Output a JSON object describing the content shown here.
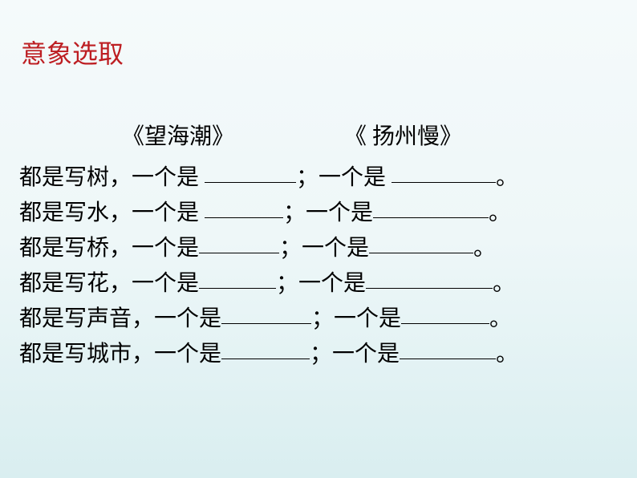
{
  "title": "意象选取",
  "title_color": "#bd1e22",
  "title_fontsize": 32,
  "body_fontsize": 28,
  "background_gradient": [
    "#f5fafb",
    "#eef7f8",
    "#d9eef0"
  ],
  "text_color": "#000000",
  "poems": {
    "poem1": "《望海潮》",
    "poem2": "《 扬州慢》"
  },
  "lines": [
    {
      "prefix": "都是写树，一个是 ",
      "mid": "；一个是 ",
      "suffix": "。",
      "blank1_width": 114,
      "blank2_width": 130
    },
    {
      "prefix": "都是写水，一个是 ",
      "mid": "；一个是",
      "suffix": "。",
      "blank1_width": 98,
      "blank2_width": 144
    },
    {
      "prefix": "都是写桥，一个是",
      "mid": "；一个是",
      "suffix": "。",
      "blank1_width": 100,
      "blank2_width": 130
    },
    {
      "prefix": "都是写花，一个是",
      "mid": "；一个是",
      "suffix": "。",
      "blank1_width": 96,
      "blank2_width": 158
    },
    {
      "prefix": "都是写声音，一个是",
      "mid": "；一个是",
      "suffix": "。",
      "blank1_width": 112,
      "blank2_width": 110
    },
    {
      "prefix": "都是写城市，一个是",
      "mid": "；一个是",
      "suffix": "。",
      "blank1_width": 110,
      "blank2_width": 120
    }
  ]
}
